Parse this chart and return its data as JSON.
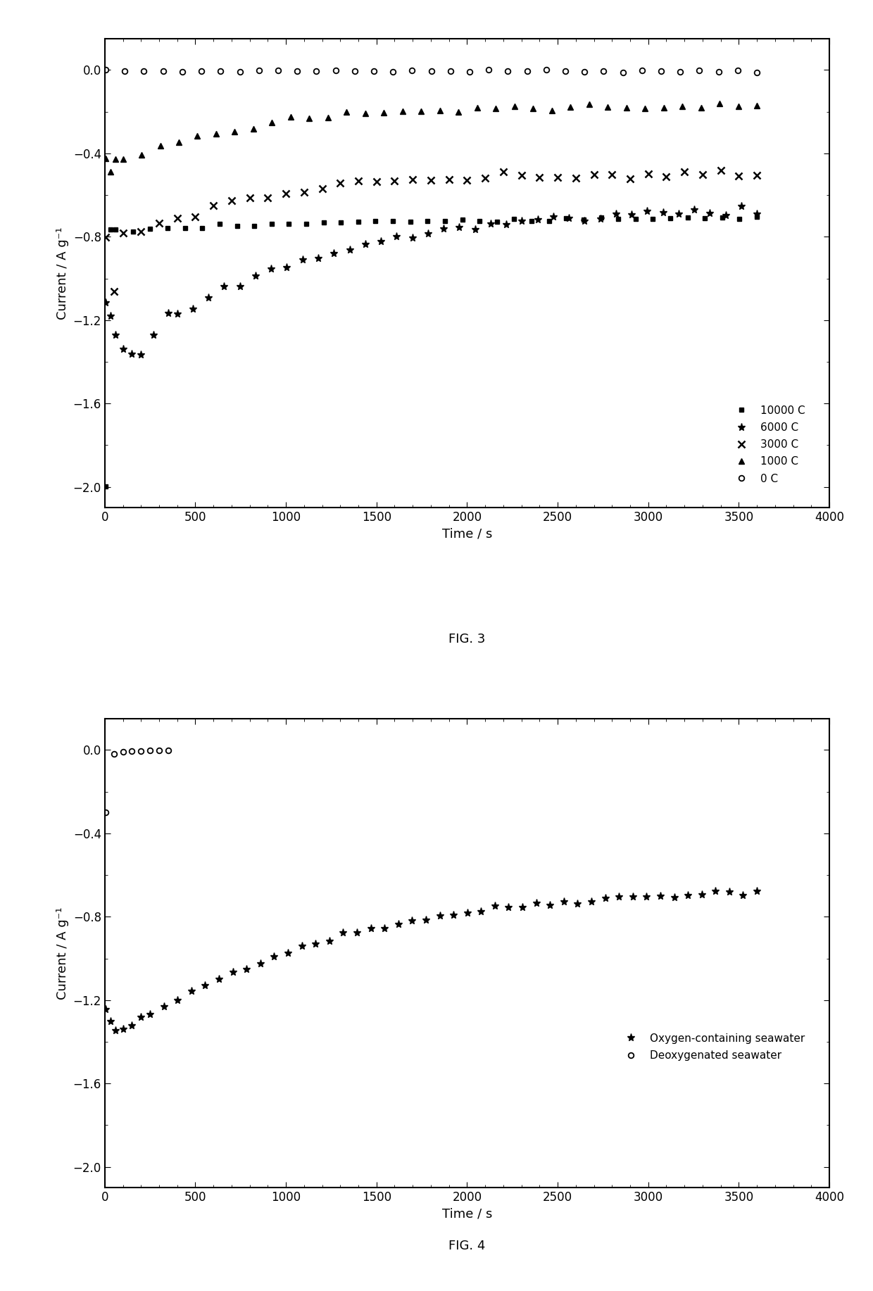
{
  "fig3": {
    "title": "FIG. 3",
    "xlabel": "Time / s",
    "ylabel": "Current / A g⁻¹",
    "xlim": [
      0,
      4000
    ],
    "ylim": [
      -2.1,
      0.15
    ],
    "yticks": [
      0.0,
      -0.4,
      -0.8,
      -1.2,
      -1.6,
      -2.0
    ],
    "xticks": [
      0,
      500,
      1000,
      1500,
      2000,
      2500,
      3000,
      3500,
      4000
    ]
  },
  "fig4": {
    "title": "FIG. 4",
    "xlabel": "Time / s",
    "ylabel": "Current / A g⁻¹",
    "xlim": [
      0,
      4000
    ],
    "ylim": [
      -2.1,
      0.15
    ],
    "yticks": [
      0.0,
      -0.4,
      -0.8,
      -1.2,
      -1.6,
      -2.0
    ],
    "xticks": [
      0,
      500,
      1000,
      1500,
      2000,
      2500,
      3000,
      3500,
      4000
    ]
  }
}
